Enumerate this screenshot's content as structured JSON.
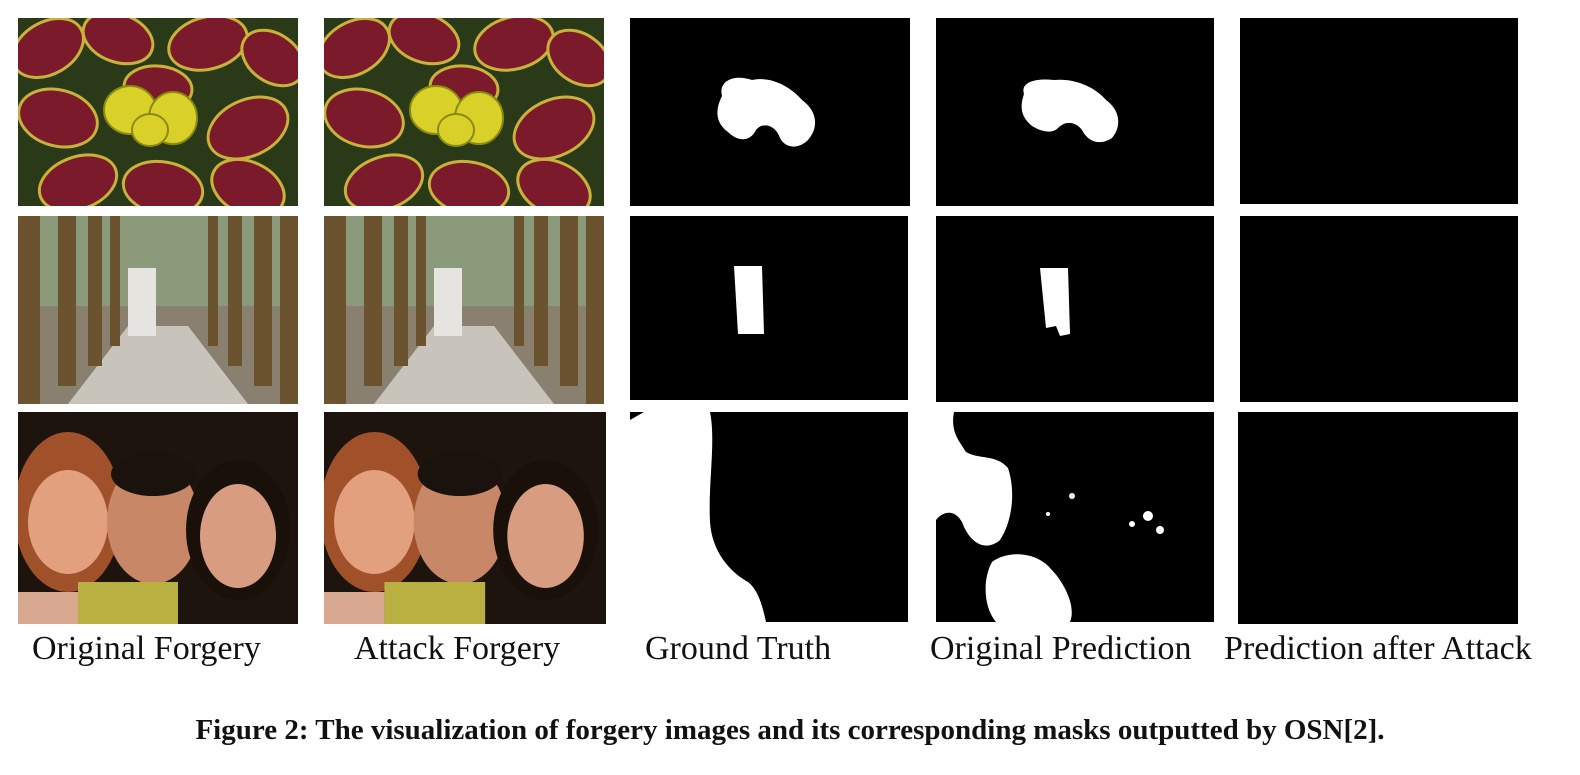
{
  "figure": {
    "column_labels": [
      "Original Forgery",
      "Attack Forgery",
      "Ground Truth",
      "Original Prediction",
      "Prediction after Attack"
    ],
    "caption": "Figure 2: The visualization of forgery images and its corresponding masks outputted by OSN[2]."
  },
  "colors": {
    "mask_foreground": "#ffffff",
    "mask_background": "#000000",
    "leaf_red": "#7a1a2a",
    "leaf_edge": "#c9b23a",
    "flower_yellow": "#d9d02a"
  }
}
